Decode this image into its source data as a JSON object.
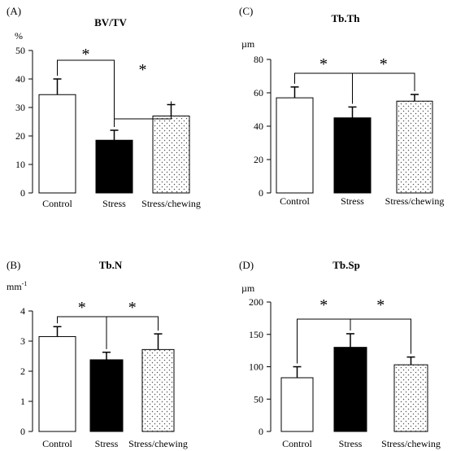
{
  "chart_data": [
    {
      "panel_label": "(A)",
      "type": "bar",
      "title": "BV/TV",
      "ylabel": "%",
      "ylim": [
        0,
        50
      ],
      "yticks": [
        "0",
        "10",
        "20",
        "30",
        "40",
        "50"
      ],
      "categories": [
        "Control",
        "Stress",
        "Stress/chewing"
      ],
      "values": [
        34.5,
        18.5,
        27
      ],
      "errors": [
        5.5,
        3.5,
        4
      ],
      "significance": [
        {
          "from": 0,
          "to": 1,
          "label": "*"
        },
        {
          "from": 1,
          "to": 2,
          "label": "*"
        }
      ]
    },
    {
      "panel_label": "(C)",
      "type": "bar",
      "title": "Tb.Th",
      "ylabel": "µm",
      "ylim": [
        0,
        80
      ],
      "yticks": [
        "0",
        "20",
        "40",
        "60",
        "80"
      ],
      "categories": [
        "Control",
        "Stress",
        "Stress/chewing"
      ],
      "values": [
        57,
        45,
        55
      ],
      "errors": [
        6.5,
        6.5,
        4
      ],
      "significance": [
        {
          "from": 0,
          "to": 1,
          "label": "*"
        },
        {
          "from": 1,
          "to": 2,
          "label": "*"
        }
      ]
    },
    {
      "panel_label": "(B)",
      "type": "bar",
      "title": "Tb.N",
      "ylabel": "mm-1",
      "ylim": [
        0,
        4
      ],
      "yticks": [
        "0",
        "1",
        "2",
        "3",
        "4"
      ],
      "categories": [
        "Control",
        "Stress",
        "Stress/chewing"
      ],
      "values": [
        3.15,
        2.38,
        2.72
      ],
      "errors": [
        0.33,
        0.25,
        0.52
      ],
      "significance": [
        {
          "from": 0,
          "to": 1,
          "label": "*"
        },
        {
          "from": 1,
          "to": 2,
          "label": "*"
        }
      ]
    },
    {
      "panel_label": "(D)",
      "type": "bar",
      "title": "Tb.Sp",
      "ylabel": "µm",
      "ylim": [
        0,
        200
      ],
      "yticks": [
        "0",
        "50",
        "100",
        "150",
        "200"
      ],
      "categories": [
        "Control",
        "Stress",
        "Stress/chewing"
      ],
      "values": [
        83,
        130,
        103
      ],
      "errors": [
        17,
        21,
        12
      ],
      "significance": [
        {
          "from": 0,
          "to": 1,
          "label": "*"
        },
        {
          "from": 1,
          "to": 2,
          "label": "*"
        }
      ]
    }
  ]
}
